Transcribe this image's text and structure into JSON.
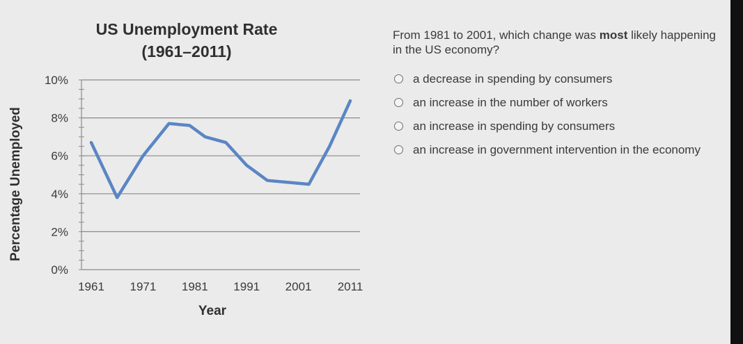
{
  "chart_data": {
    "type": "line",
    "title": "US Unemployment Rate",
    "subtitle": "(1961–2011)",
    "xlabel": "Year",
    "ylabel": "Percentage Unemployed",
    "x_tick_labels": [
      "1961",
      "1971",
      "1981",
      "1991",
      "2001",
      "2011"
    ],
    "y_tick_labels": [
      "0%",
      "2%",
      "4%",
      "6%",
      "8%",
      "10%"
    ],
    "xlim": [
      1961,
      2011
    ],
    "ylim": [
      0,
      10
    ],
    "grid": "horizontal",
    "line_color": "#5b86c4",
    "series": [
      {
        "x": [
          1961,
          1966,
          1971,
          1976,
          1980,
          1983,
          1987,
          1991,
          1995,
          1999,
          2003,
          2007,
          2011
        ],
        "y": [
          6.7,
          3.8,
          6.0,
          7.7,
          7.6,
          7.0,
          6.7,
          5.5,
          4.7,
          4.6,
          4.5,
          6.5,
          8.9
        ]
      }
    ]
  },
  "question": {
    "text_before": "From 1981 to 2001, which change was ",
    "text_strong": "most",
    "text_after": " likely happening in the US economy?"
  },
  "options": [
    {
      "label": "a decrease in spending by consumers"
    },
    {
      "label": "an increase in the number of workers"
    },
    {
      "label": "an increase in spending by consumers"
    },
    {
      "label": "an increase in government intervention in the economy"
    }
  ]
}
